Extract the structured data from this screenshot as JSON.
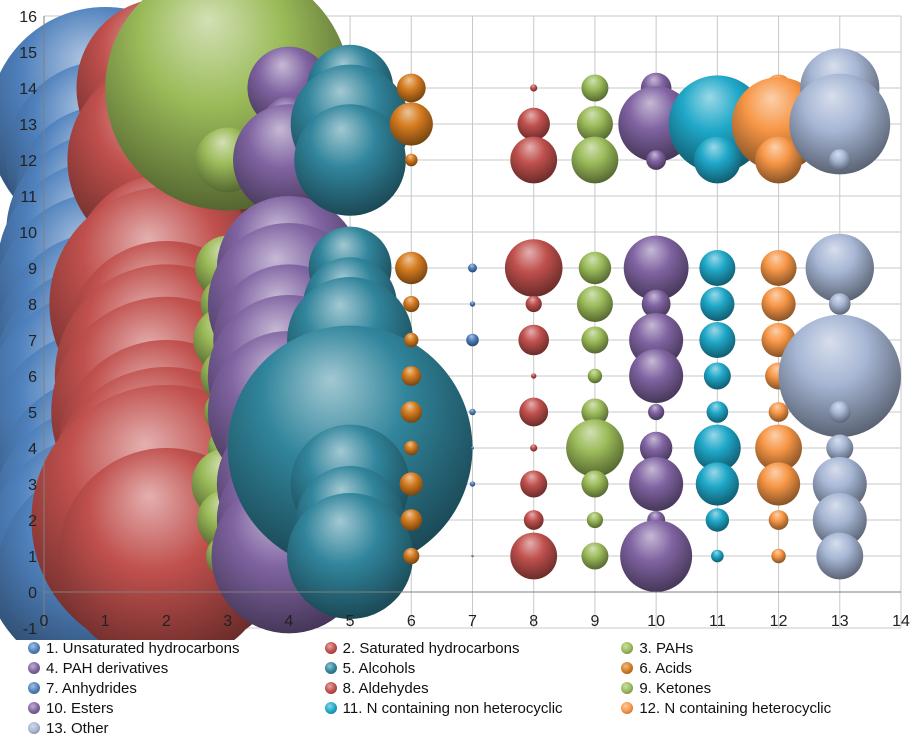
{
  "chart_data": {
    "type": "bubble",
    "xlim": [
      0,
      14
    ],
    "ylim": [
      -1,
      16
    ],
    "x_ticks": [
      "0",
      "1",
      "2",
      "3",
      "4",
      "5",
      "6",
      "7",
      "8",
      "9",
      "10",
      "11",
      "12",
      "13",
      "14"
    ],
    "y_ticks": [
      "-1",
      "0",
      "1",
      "2",
      "3",
      "4",
      "5",
      "6",
      "7",
      "8",
      "9",
      "10",
      "11",
      "12",
      "13",
      "14",
      "15",
      "16"
    ],
    "grid": true,
    "legend_position": "bottom",
    "series": [
      {
        "name": "1. Unsaturated hydrocarbons",
        "color": "#4f81bd",
        "x": 1,
        "points": [
          [
            14,
            4.2
          ],
          [
            13,
            6.5
          ],
          [
            12,
            5.5
          ],
          [
            11,
            5.0
          ],
          [
            10,
            5.5
          ],
          [
            9,
            6.0
          ],
          [
            8,
            6.2
          ],
          [
            7,
            6.0
          ],
          [
            6,
            6.2
          ],
          [
            5,
            6.8
          ],
          [
            4,
            6.6
          ],
          [
            3,
            6.0
          ],
          [
            2,
            6.4
          ],
          [
            1,
            6.8
          ],
          [
            0.5,
            6.0
          ]
        ]
      },
      {
        "name": "2. Saturated hydrocarbons",
        "color": "#c0504d",
        "x": 2,
        "points": [
          [
            14,
            5.0
          ],
          [
            13,
            4.5
          ],
          [
            12,
            5.5
          ],
          [
            9,
            5.2
          ],
          [
            8,
            6.5
          ],
          [
            7,
            5.5
          ],
          [
            6,
            6.2
          ],
          [
            5,
            6.4
          ],
          [
            4,
            6.0
          ],
          [
            3,
            6.5
          ],
          [
            2,
            7.5
          ],
          [
            1,
            6.0
          ]
        ]
      },
      {
        "name": "3. PAHs",
        "color": "#9bbb59",
        "x": 3,
        "points": [
          [
            14,
            6.8
          ],
          [
            12,
            1.8
          ],
          [
            9,
            1.8
          ],
          [
            8,
            1.5
          ],
          [
            7,
            1.9
          ],
          [
            6,
            1.5
          ],
          [
            5,
            1.3
          ],
          [
            4,
            1.1
          ],
          [
            3,
            2.0
          ],
          [
            2,
            1.7
          ],
          [
            1,
            1.2
          ]
        ]
      },
      {
        "name": "4. PAH derivatives",
        "color": "#8064a2",
        "x": 4,
        "points": [
          [
            14,
            2.3
          ],
          [
            13,
            1.5
          ],
          [
            12,
            3.1
          ],
          [
            9,
            4.0
          ],
          [
            8,
            4.5
          ],
          [
            7,
            4.2
          ],
          [
            6,
            4.5
          ],
          [
            5,
            4.5
          ],
          [
            4,
            3.5
          ],
          [
            3,
            4.0
          ],
          [
            2,
            4.0
          ],
          [
            1,
            4.3
          ]
        ]
      },
      {
        "name": "5. Alcohols",
        "color": "#31859c",
        "x": 5,
        "points": [
          [
            14,
            2.4
          ],
          [
            13,
            3.3
          ],
          [
            12,
            3.1
          ],
          [
            9,
            2.3
          ],
          [
            8,
            2.6
          ],
          [
            7,
            3.5
          ],
          [
            6,
            1.2
          ],
          [
            5,
            1.3
          ],
          [
            4,
            6.8
          ],
          [
            3,
            3.3
          ],
          [
            2,
            3.0
          ],
          [
            1,
            3.5
          ]
        ]
      },
      {
        "name": "6. Acids",
        "color": "#d47b1f",
        "x": 6,
        "points": [
          [
            14,
            0.8
          ],
          [
            13,
            1.2
          ],
          [
            12,
            0.35
          ],
          [
            9,
            0.9
          ],
          [
            8,
            0.45
          ],
          [
            7,
            0.4
          ],
          [
            6,
            0.55
          ],
          [
            5,
            0.6
          ],
          [
            4,
            0.4
          ],
          [
            3,
            0.65
          ],
          [
            2,
            0.6
          ],
          [
            1,
            0.45
          ]
        ]
      },
      {
        "name": "7. Anhydrides",
        "color": "#4f81bd",
        "x": 7,
        "points": [
          [
            9,
            0.25
          ],
          [
            8,
            0.15
          ],
          [
            7,
            0.35
          ],
          [
            5,
            0.18
          ],
          [
            4,
            0.08
          ],
          [
            3,
            0.15
          ],
          [
            1,
            0.05
          ]
        ]
      },
      {
        "name": "8. Aldehydes",
        "color": "#c0504d",
        "x": 8,
        "points": [
          [
            14,
            0.2
          ],
          [
            13,
            0.9
          ],
          [
            12,
            1.3
          ],
          [
            9,
            1.6
          ],
          [
            8,
            0.45
          ],
          [
            7,
            0.85
          ],
          [
            6,
            0.15
          ],
          [
            5,
            0.8
          ],
          [
            4,
            0.2
          ],
          [
            3,
            0.75
          ],
          [
            2,
            0.55
          ],
          [
            1,
            1.3
          ]
        ]
      },
      {
        "name": "9. Ketones",
        "color": "#9bbb59",
        "x": 9,
        "points": [
          [
            14,
            0.75
          ],
          [
            13,
            1.0
          ],
          [
            12,
            1.3
          ],
          [
            9,
            0.9
          ],
          [
            8,
            1.0
          ],
          [
            7,
            0.75
          ],
          [
            6,
            0.4
          ],
          [
            5,
            0.75
          ],
          [
            4,
            1.6
          ],
          [
            3,
            0.75
          ],
          [
            2,
            0.45
          ],
          [
            1,
            0.75
          ]
        ]
      },
      {
        "name": "10. Esters",
        "color": "#8064a2",
        "x": 10,
        "points": [
          [
            14,
            0.85
          ],
          [
            13,
            2.1
          ],
          [
            12,
            0.55
          ],
          [
            9,
            1.8
          ],
          [
            8,
            0.8
          ],
          [
            7,
            1.5
          ],
          [
            6,
            1.5
          ],
          [
            5,
            0.45
          ],
          [
            4,
            0.9
          ],
          [
            3,
            1.5
          ],
          [
            2,
            0.5
          ],
          [
            1,
            2.0
          ]
        ]
      },
      {
        "name": "11. N containing non heterocyclic",
        "color": "#1fa8c9",
        "x": 11,
        "points": [
          [
            14,
            0.6
          ],
          [
            13,
            2.7
          ],
          [
            12,
            1.3
          ],
          [
            9,
            1.0
          ],
          [
            8,
            0.95
          ],
          [
            7,
            1.0
          ],
          [
            6,
            0.75
          ],
          [
            5,
            0.6
          ],
          [
            4,
            1.3
          ],
          [
            3,
            1.2
          ],
          [
            2,
            0.65
          ],
          [
            1,
            0.35
          ]
        ]
      },
      {
        "name": "12. N containing heterocyclic",
        "color": "#f79646",
        "x": 12,
        "points": [
          [
            14,
            0.75
          ],
          [
            13,
            2.6
          ],
          [
            12,
            1.3
          ],
          [
            9,
            1.0
          ],
          [
            8,
            0.95
          ],
          [
            7,
            0.95
          ],
          [
            6,
            0.75
          ],
          [
            5,
            0.55
          ],
          [
            4,
            1.3
          ],
          [
            3,
            1.2
          ],
          [
            2,
            0.55
          ],
          [
            1,
            0.4
          ]
        ]
      },
      {
        "name": "13. Other",
        "color": "#a6b6d4",
        "x": 13,
        "points": [
          [
            14,
            2.2
          ],
          [
            13,
            2.8
          ],
          [
            12,
            0.6
          ],
          [
            9,
            1.9
          ],
          [
            8,
            0.6
          ],
          [
            7,
            1.2
          ],
          [
            6,
            3.4
          ],
          [
            5,
            0.6
          ],
          [
            4,
            0.75
          ],
          [
            3,
            1.5
          ],
          [
            2,
            1.5
          ],
          [
            1,
            1.3
          ]
        ]
      }
    ]
  }
}
